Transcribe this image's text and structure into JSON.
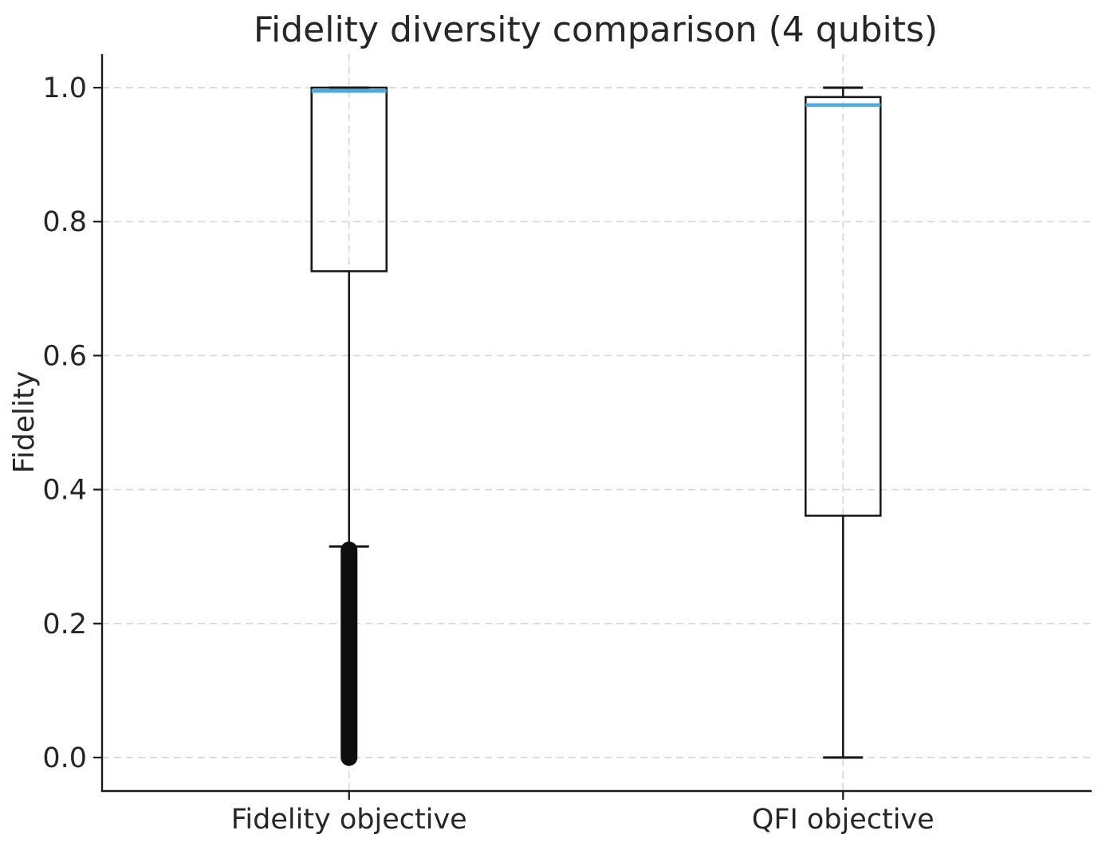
{
  "chart_data": {
    "type": "boxplot",
    "title": "Fidelity diversity comparison (4 qubits)",
    "ylabel": "Fidelity",
    "xlabel": "",
    "categories": [
      "Fidelity objective",
      "QFI objective"
    ],
    "yticks": [
      0.0,
      0.2,
      0.4,
      0.6,
      0.8,
      1.0
    ],
    "ylim": [
      -0.05,
      1.05
    ],
    "grid": {
      "horizontal": true,
      "vertical": true,
      "style": "dashed"
    },
    "legend": null,
    "series": [
      {
        "category": "Fidelity objective",
        "whisker_low": 0.315,
        "q1": 0.726,
        "median": 0.995,
        "q3": 1.0,
        "whisker_high": 1.0,
        "outliers": {
          "style": "dense-column",
          "min": 0.0,
          "max": 0.31
        }
      },
      {
        "category": "QFI objective",
        "whisker_low": 0.0,
        "q1": 0.361,
        "median": 0.974,
        "q3": 0.986,
        "whisker_high": 1.0,
        "outliers": null
      }
    ],
    "colors": {
      "box": "#1a1a1a",
      "median": "#4fa9e0",
      "grid": "#d9d9d9",
      "text": "#262626",
      "outlier": "#0d0d0d",
      "background": "#ffffff"
    }
  }
}
